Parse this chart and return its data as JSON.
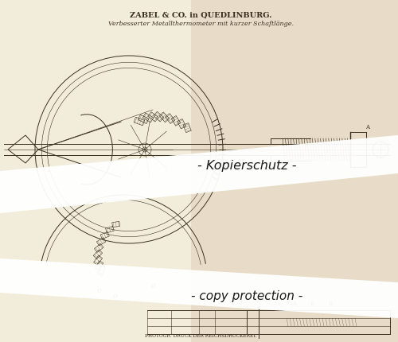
{
  "bg_color": "#f2edda",
  "bg_right": "#e8dcc8",
  "title_line1": "ZABEL & CO. in QUEDLINBURG.",
  "title_line2": "Verbesserter Metallthermometer mit kurzer Schaftlänge.",
  "footer_text": "PHOTOGR. DRUCK DER REICHSDRUCKEREI.",
  "watermark1": "- Kopierschutz -",
  "watermark2": "- copy protection -",
  "line_color": "#3a3020",
  "watermark_color": "#ffffff",
  "watermark_alpha": 0.95,
  "fig_w": 5.0,
  "fig_h": 4.3,
  "dpi": 100
}
